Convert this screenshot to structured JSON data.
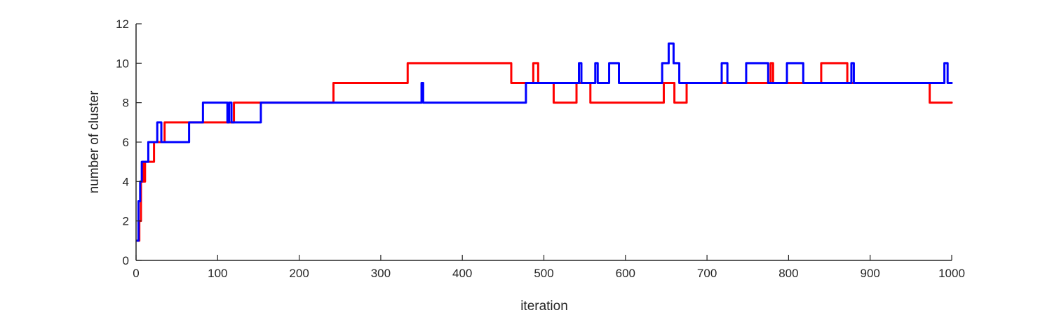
{
  "chart_data": {
    "type": "line",
    "title": "",
    "xlabel": "iteration",
    "ylabel": "number of cluster",
    "xlim": [
      0,
      1000
    ],
    "ylim": [
      0,
      12
    ],
    "xticks": [
      0,
      100,
      200,
      300,
      400,
      500,
      600,
      700,
      800,
      900,
      1000
    ],
    "yticks": [
      0,
      2,
      4,
      6,
      8,
      10,
      12
    ],
    "xtick_labels": [
      "0",
      "100",
      "200",
      "300",
      "400",
      "500",
      "600",
      "700",
      "800",
      "900",
      "1000"
    ],
    "ytick_labels": [
      "0",
      "2",
      "4",
      "6",
      "8",
      "10",
      "12"
    ],
    "grid": false,
    "line_shape": "step",
    "series": [
      {
        "color": "#ff0000",
        "x": [
          1,
          4,
          6,
          8,
          9,
          11,
          14,
          22,
          27,
          35,
          85,
          112,
          120,
          154,
          242,
          333,
          460,
          487,
          493,
          512,
          540,
          557,
          647,
          660,
          665,
          675,
          778,
          781,
          820,
          840,
          872,
          880,
          973,
          1000
        ],
        "y": [
          1,
          2,
          4,
          5,
          4,
          5,
          5,
          6,
          6,
          7,
          7,
          7,
          8,
          8,
          9,
          10,
          9,
          10,
          9,
          8,
          9,
          8,
          9,
          8,
          8,
          9,
          10,
          9,
          9,
          10,
          9,
          9,
          8,
          8
        ]
      },
      {
        "color": "#0000ff",
        "x": [
          1,
          3,
          5,
          7,
          9,
          15,
          26,
          31,
          65,
          82,
          112,
          114,
          117,
          120,
          153,
          350,
          352,
          478,
          543,
          546,
          563,
          566,
          580,
          592,
          645,
          653,
          659,
          666,
          718,
          725,
          748,
          775,
          798,
          818,
          877,
          880,
          991,
          995,
          1000
        ],
        "y": [
          1,
          3,
          4,
          5,
          5,
          6,
          7,
          6,
          7,
          8,
          7,
          8,
          7,
          7,
          8,
          9,
          8,
          9,
          10,
          9,
          10,
          9,
          10,
          9,
          10,
          11,
          10,
          9,
          10,
          9,
          10,
          9,
          10,
          9,
          10,
          9,
          10,
          9,
          9
        ]
      }
    ]
  }
}
